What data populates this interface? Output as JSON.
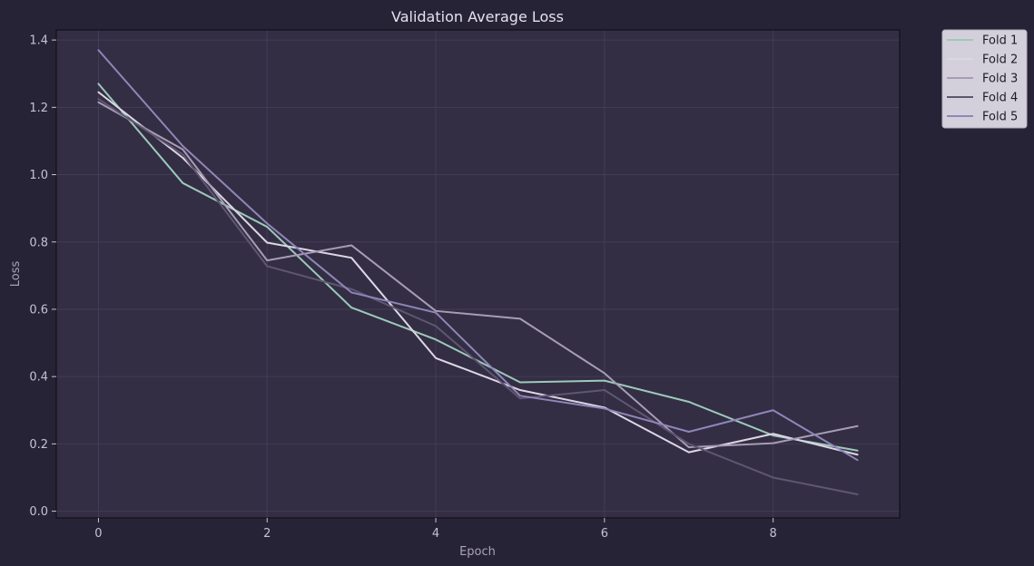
{
  "chart_data": {
    "type": "line",
    "title": "Validation Average Loss",
    "xlabel": "Epoch",
    "ylabel": "Loss",
    "xlim": [
      -0.5,
      9.5
    ],
    "ylim": [
      -0.02,
      1.43
    ],
    "x_ticks": [
      0,
      2,
      4,
      6,
      8
    ],
    "y_ticks": [
      0.0,
      0.2,
      0.4,
      0.6,
      0.8,
      1.0,
      1.2,
      1.4
    ],
    "x_tick_labels": [
      "0",
      "2",
      "4",
      "6",
      "8"
    ],
    "y_tick_labels": [
      "0.0",
      "0.2",
      "0.4",
      "0.6",
      "0.8",
      "1.0",
      "1.2",
      "1.4"
    ],
    "grid": true,
    "legend_position": "outside-top-right",
    "x": [
      0,
      1,
      2,
      3,
      4,
      5,
      6,
      7,
      8,
      9
    ],
    "series": [
      {
        "name": "Fold 1",
        "color": "#9cc9bb",
        "values": [
          1.27,
          0.975,
          0.845,
          0.605,
          0.51,
          0.383,
          0.388,
          0.325,
          0.225,
          0.18
        ]
      },
      {
        "name": "Fold 2",
        "color": "#ddd6e4",
        "values": [
          1.245,
          1.05,
          0.798,
          0.753,
          0.455,
          0.36,
          0.308,
          0.175,
          0.23,
          0.168
        ]
      },
      {
        "name": "Fold 3",
        "color": "#a79cb6",
        "values": [
          1.215,
          1.075,
          0.745,
          0.79,
          0.595,
          0.572,
          0.41,
          0.19,
          0.202,
          0.253
        ]
      },
      {
        "name": "Fold 4",
        "color": "#5f5671",
        "values": [
          1.225,
          1.06,
          0.728,
          0.66,
          0.55,
          0.335,
          0.36,
          0.2,
          0.1,
          0.05
        ]
      },
      {
        "name": "Fold 5",
        "color": "#8f86b8",
        "values": [
          1.37,
          1.085,
          0.855,
          0.65,
          0.59,
          0.343,
          0.305,
          0.236,
          0.3,
          0.152
        ]
      }
    ]
  },
  "colors": {
    "background": "#272336",
    "plot_background": "#332e44",
    "grid": "#433d55",
    "text": "#c6c0d2",
    "title": "#e6e1ee",
    "legend_background": "#d4d0db",
    "legend_text": "#1e1a28"
  }
}
